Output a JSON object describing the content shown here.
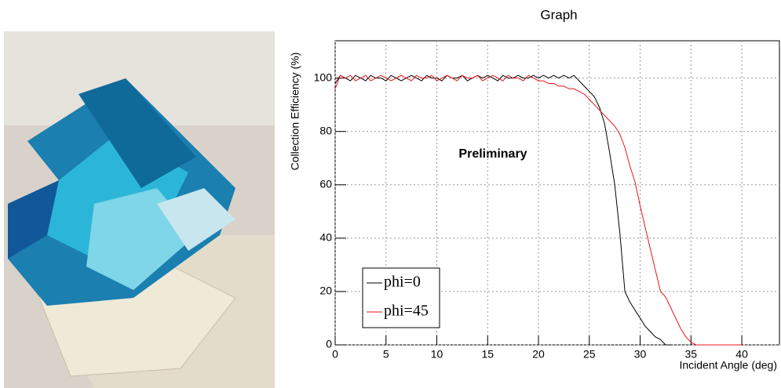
{
  "chart_data": {
    "type": "line",
    "title": "Graph",
    "x_label": "Incident Angle (deg)",
    "y_label": "Collection Efficiency (%)",
    "annotation": "Preliminary",
    "annotation_color": "#f040f0",
    "xlim": [
      0,
      43.7
    ],
    "ylim": [
      0,
      114
    ],
    "xticks": [
      0,
      5,
      10,
      15,
      20,
      25,
      30,
      35,
      40
    ],
    "yticks": [
      0,
      20,
      40,
      60,
      80,
      100
    ],
    "grid": true,
    "legend": "bottom-left",
    "x": [
      0,
      0.5,
      1,
      1.5,
      2,
      2.5,
      3,
      3.5,
      4,
      4.5,
      5,
      5.5,
      6,
      6.5,
      7,
      7.5,
      8,
      8.5,
      9,
      9.5,
      10,
      10.5,
      11,
      11.5,
      12,
      12.5,
      13,
      13.5,
      14,
      14.5,
      15,
      15.5,
      16,
      16.5,
      17,
      17.5,
      18,
      18.5,
      19,
      19.5,
      20,
      20.5,
      21,
      21.5,
      22,
      22.5,
      23,
      23.5,
      24,
      24.5,
      25,
      25.5,
      26,
      26.5,
      27,
      27.5,
      28,
      28.5,
      29,
      29.5,
      30,
      30.5,
      31,
      31.5,
      32,
      32.5,
      33,
      33.5,
      34,
      34.5,
      35,
      35.5,
      36,
      36.5,
      37,
      37.5,
      38,
      38.5,
      39,
      39.5,
      40
    ],
    "series": [
      {
        "name": "phi=0",
        "color": "#000000",
        "values": [
          98,
          101,
          100,
          99,
          101,
          100,
          99,
          101,
          100,
          100,
          99,
          101,
          100,
          99,
          100,
          101,
          100,
          99,
          101,
          100,
          100,
          99,
          101,
          100,
          100,
          101,
          99,
          100,
          101,
          100,
          101,
          100,
          99,
          101,
          100,
          100,
          101,
          100,
          100,
          101,
          100,
          101,
          100,
          101,
          100,
          101,
          100,
          101,
          99,
          97,
          95,
          93,
          89,
          83,
          72,
          60,
          42,
          20,
          16,
          13,
          10,
          7,
          5,
          3,
          2,
          0,
          0,
          null,
          null,
          null,
          null,
          null,
          null,
          null,
          null,
          null,
          null,
          null,
          null,
          null,
          null
        ]
      },
      {
        "name": "phi=45",
        "color": "#e8161b",
        "values": [
          96,
          101,
          100,
          101,
          99,
          100,
          101,
          99,
          100,
          101,
          100,
          99,
          100,
          101,
          100,
          99,
          101,
          100,
          100,
          101,
          99,
          100,
          101,
          100,
          99,
          101,
          100,
          100,
          101,
          99,
          100,
          101,
          100,
          99,
          101,
          100,
          100,
          99,
          101,
          100,
          99,
          99,
          98,
          98,
          97,
          97,
          96,
          96,
          95,
          94,
          92,
          90,
          88,
          86,
          84,
          82,
          79,
          74,
          67,
          61,
          52,
          44,
          36,
          28,
          20,
          18,
          14,
          10,
          6,
          3,
          1,
          0,
          0,
          0,
          0,
          0,
          0,
          0,
          0,
          0,
          0
        ]
      }
    ]
  }
}
